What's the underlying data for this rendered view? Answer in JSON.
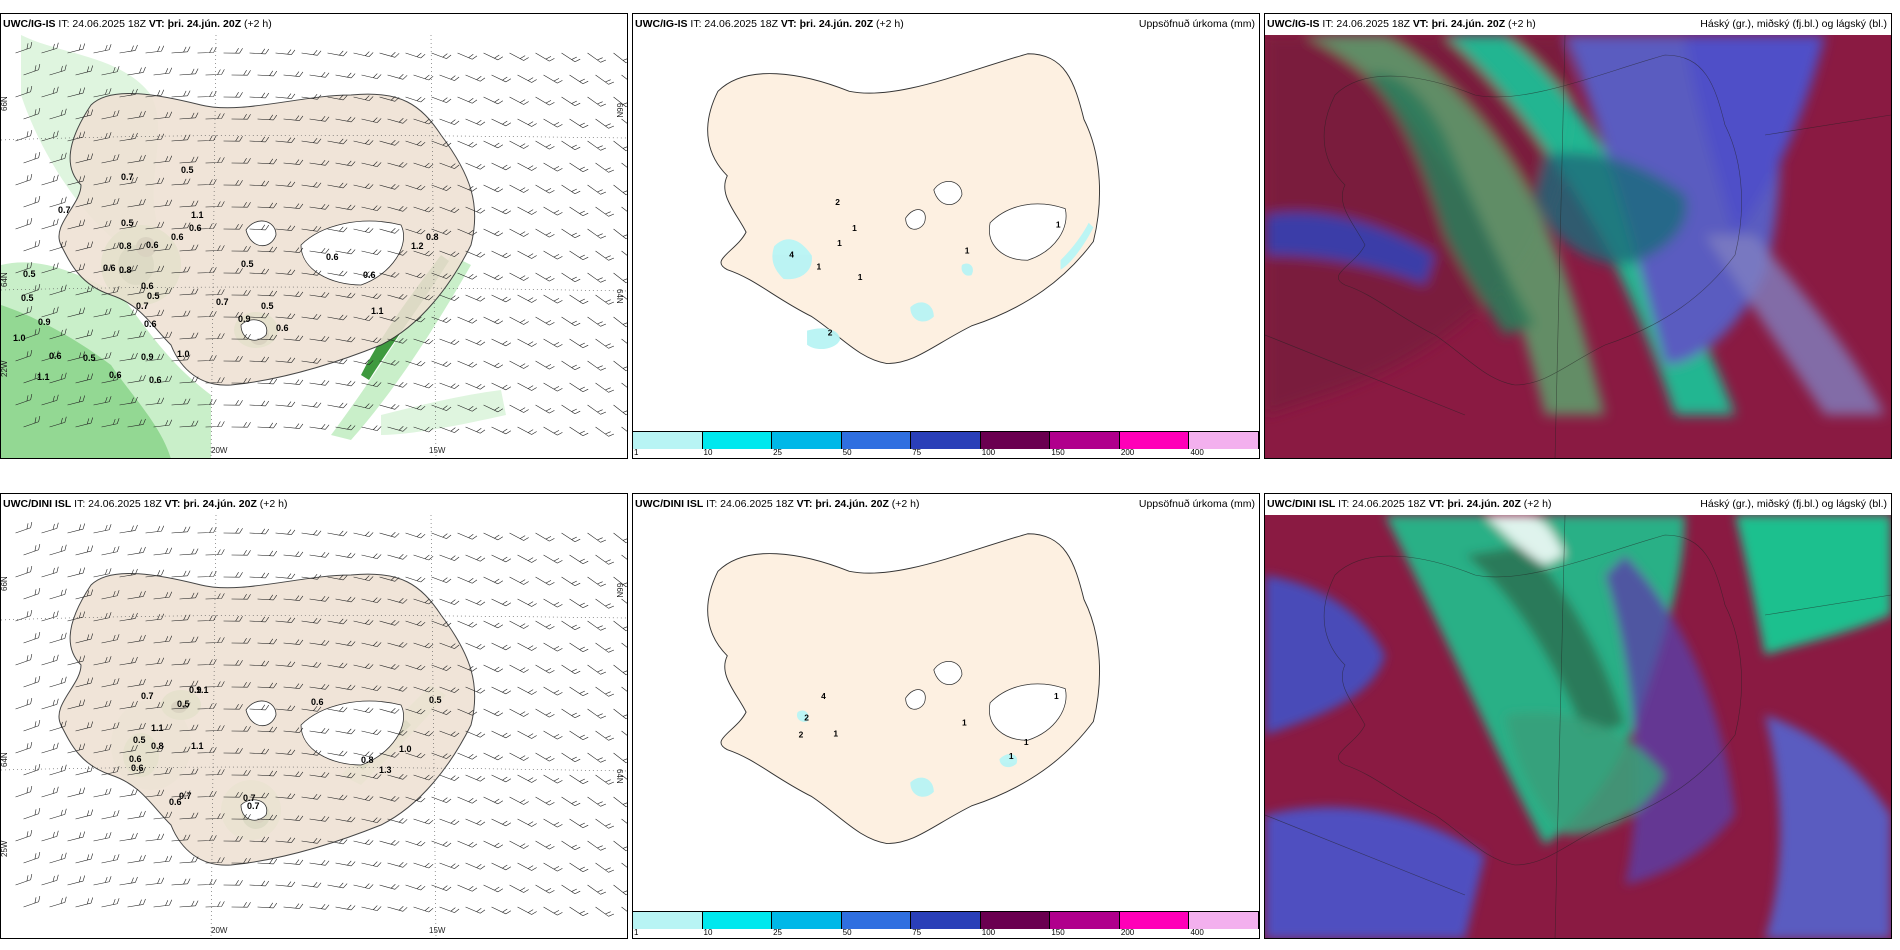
{
  "panels": [
    {
      "model": "UWC/IG-IS",
      "it": "IT: 24.06.2025 18Z",
      "vt": "VT: þri. 24.jún. 20Z",
      "lead": "(+2 h)",
      "right": ""
    },
    {
      "model": "UWC/IG-IS",
      "it": "IT: 24.06.2025 18Z",
      "vt": "VT: þri. 24.jún. 20Z",
      "lead": "(+2 h)",
      "right": "Uppsöfnuð úrkoma (mm)"
    },
    {
      "model": "UWC/IG-IS",
      "it": "IT: 24.06.2025 18Z",
      "vt": "VT: þri. 24.jún. 20Z",
      "lead": "(+2 h)",
      "right": "Háský (gr.), miðský (fj.bl.) og lágský (bl.)"
    },
    {
      "model": "UWC/DINI ISL",
      "it": "IT: 24.06.2025 18Z",
      "vt": "VT: þri. 24.jún. 20Z",
      "lead": "(+2 h)",
      "right": ""
    },
    {
      "model": "UWC/DINI ISL",
      "it": "IT: 24.06.2025 18Z",
      "vt": "VT: þri. 24.jún. 20Z",
      "lead": "(+2 h)",
      "right": "Uppsöfnuð úrkoma (mm)"
    },
    {
      "model": "UWC/DINI ISL",
      "it": "IT: 24.06.2025 18Z",
      "vt": "VT: þri. 24.jún. 20Z",
      "lead": "(+2 h)",
      "right": "Háský (gr.), miðský (fj.bl.) og lágský (bl.)"
    }
  ],
  "axes": {
    "lon": [
      "20W",
      "15W"
    ],
    "lat_top": [
      "66N",
      "64N"
    ],
    "lat_bot": [
      "66N",
      "64N"
    ],
    "lat_left_top": [
      "66N",
      "64N",
      "22W"
    ],
    "lat_left_bot": [
      "66N",
      "64N",
      "25W"
    ]
  },
  "colorbar": {
    "ticks": [
      "1",
      "10",
      "25",
      "50",
      "75",
      "100",
      "150",
      "200",
      "400"
    ],
    "colors": [
      "#b8f4f4",
      "#00e8ee",
      "#00b8e8",
      "#2f6fe0",
      "#2a3fb8",
      "#6a0050",
      "#b0008c",
      "#ff00b8",
      "#f3b0ee"
    ]
  },
  "wind_labels_top": [
    {
      "t": "0.7",
      "x": 120,
      "y": 145
    },
    {
      "t": "0.5",
      "x": 180,
      "y": 138
    },
    {
      "t": "0.7",
      "x": 57,
      "y": 178
    },
    {
      "t": "1.1",
      "x": 190,
      "y": 183
    },
    {
      "t": "0.5",
      "x": 120,
      "y": 191
    },
    {
      "t": "0.6",
      "x": 188,
      "y": 196
    },
    {
      "t": "0.6",
      "x": 170,
      "y": 205
    },
    {
      "t": "0.6",
      "x": 145,
      "y": 213
    },
    {
      "t": "0.8",
      "x": 118,
      "y": 214
    },
    {
      "t": "0.6",
      "x": 325,
      "y": 225
    },
    {
      "t": "0.5",
      "x": 240,
      "y": 232
    },
    {
      "t": "1.2",
      "x": 410,
      "y": 214
    },
    {
      "t": "0.8",
      "x": 425,
      "y": 205
    },
    {
      "t": "0.5",
      "x": 22,
      "y": 242
    },
    {
      "t": "0.6",
      "x": 102,
      "y": 236
    },
    {
      "t": "0.8",
      "x": 118,
      "y": 238
    },
    {
      "t": "0.6",
      "x": 140,
      "y": 254
    },
    {
      "t": "0.5",
      "x": 146,
      "y": 264
    },
    {
      "t": "0.6",
      "x": 362,
      "y": 243
    },
    {
      "t": "0.5",
      "x": 20,
      "y": 266
    },
    {
      "t": "0.7",
      "x": 135,
      "y": 274
    },
    {
      "t": "0.7",
      "x": 215,
      "y": 270
    },
    {
      "t": "0.5",
      "x": 260,
      "y": 274
    },
    {
      "t": "0.6",
      "x": 143,
      "y": 292
    },
    {
      "t": "0.9",
      "x": 237,
      "y": 287
    },
    {
      "t": "0.9",
      "x": 37,
      "y": 290
    },
    {
      "t": "0.6",
      "x": 275,
      "y": 296
    },
    {
      "t": "1.0",
      "x": 12,
      "y": 306
    },
    {
      "t": "0.9",
      "x": 140,
      "y": 325
    },
    {
      "t": "1.0",
      "x": 176,
      "y": 322
    },
    {
      "t": "0.6",
      "x": 48,
      "y": 324
    },
    {
      "t": "0.5",
      "x": 82,
      "y": 326
    },
    {
      "t": "0.6",
      "x": 108,
      "y": 343
    },
    {
      "t": "0.6",
      "x": 148,
      "y": 348
    },
    {
      "t": "1.1",
      "x": 36,
      "y": 345
    },
    {
      "t": "1.1",
      "x": 370,
      "y": 279
    }
  ],
  "wind_labels_bot": [
    {
      "t": "0.7",
      "x": 140,
      "y": 184
    },
    {
      "t": "0.9",
      "x": 188,
      "y": 178
    },
    {
      "t": "1.1",
      "x": 195,
      "y": 178
    },
    {
      "t": "0.6",
      "x": 310,
      "y": 190
    },
    {
      "t": "0.5",
      "x": 428,
      "y": 188
    },
    {
      "t": "0.5",
      "x": 176,
      "y": 192
    },
    {
      "t": "1.1",
      "x": 150,
      "y": 216
    },
    {
      "t": "0.5",
      "x": 132,
      "y": 228
    },
    {
      "t": "0.8",
      "x": 150,
      "y": 234
    },
    {
      "t": "1.1",
      "x": 190,
      "y": 234
    },
    {
      "t": "0.6",
      "x": 128,
      "y": 247
    },
    {
      "t": "0.6",
      "x": 130,
      "y": 256
    },
    {
      "t": "1.0",
      "x": 398,
      "y": 237
    },
    {
      "t": "0.8",
      "x": 360,
      "y": 248
    },
    {
      "t": "1.3",
      "x": 378,
      "y": 258
    },
    {
      "t": "0.7",
      "x": 178,
      "y": 284
    },
    {
      "t": "0.6",
      "x": 168,
      "y": 290
    },
    {
      "t": "0.7",
      "x": 242,
      "y": 286
    },
    {
      "t": "0.7",
      "x": 246,
      "y": 294
    }
  ],
  "precip_labels_top": [
    {
      "t": "2",
      "x": 195,
      "y": 181
    },
    {
      "t": "1",
      "x": 213,
      "y": 209
    },
    {
      "t": "1",
      "x": 197,
      "y": 225
    },
    {
      "t": "4",
      "x": 146,
      "y": 237
    },
    {
      "t": "1",
      "x": 175,
      "y": 250
    },
    {
      "t": "1",
      "x": 219,
      "y": 261
    },
    {
      "t": "1",
      "x": 333,
      "y": 233
    },
    {
      "t": "1",
      "x": 430,
      "y": 205
    },
    {
      "t": "2",
      "x": 187,
      "y": 320
    }
  ],
  "precip_labels_bot": [
    {
      "t": "2",
      "x": 162,
      "y": 219
    },
    {
      "t": "4",
      "x": 180,
      "y": 196
    },
    {
      "t": "2",
      "x": 156,
      "y": 237
    },
    {
      "t": "1",
      "x": 193,
      "y": 236
    },
    {
      "t": "1",
      "x": 330,
      "y": 224
    },
    {
      "t": "1",
      "x": 428,
      "y": 196
    },
    {
      "t": "1",
      "x": 396,
      "y": 245
    },
    {
      "t": "1",
      "x": 380,
      "y": 260
    }
  ]
}
